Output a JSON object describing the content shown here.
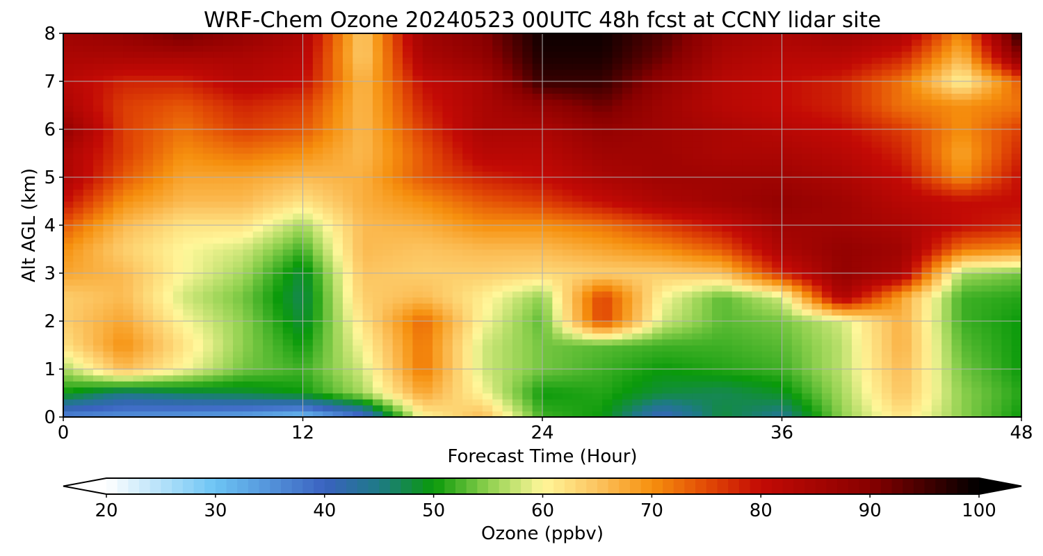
{
  "chart_data": {
    "type": "heatmap",
    "title": "WRF-Chem Ozone  20240523 00UTC 48h fcst at CCNY lidar site",
    "xlabel": "Forecast Time (Hour)",
    "ylabel": "Alt AGL (km)",
    "xlim": [
      0,
      48
    ],
    "ylim": [
      0,
      8
    ],
    "x_ticks": [
      "0",
      "12",
      "24",
      "36",
      "48"
    ],
    "y_ticks": [
      "0",
      "1",
      "2",
      "3",
      "4",
      "5",
      "6",
      "7",
      "8"
    ],
    "grid": true,
    "x": [
      0,
      3,
      6,
      9,
      12,
      15,
      18,
      21,
      24,
      27,
      30,
      33,
      36,
      39,
      42,
      45,
      48
    ],
    "y": [
      0,
      0.5,
      1,
      1.5,
      2,
      2.5,
      3,
      3.5,
      4,
      4.5,
      5,
      5.5,
      6,
      6.5,
      7,
      7.5,
      8
    ],
    "values": [
      [
        36,
        35,
        34,
        33,
        30,
        38,
        60,
        66,
        52,
        50,
        40,
        48,
        44,
        55,
        62,
        55,
        50
      ],
      [
        50,
        45,
        47,
        48,
        50,
        56,
        68,
        60,
        50,
        51,
        48,
        47,
        49,
        56,
        65,
        55,
        51
      ],
      [
        56,
        66,
        60,
        54,
        52,
        58,
        72,
        58,
        54,
        52,
        50,
        51,
        52,
        57,
        66,
        54,
        50
      ],
      [
        62,
        70,
        62,
        55,
        50,
        60,
        72,
        58,
        54,
        53,
        52,
        52,
        53,
        57,
        67,
        53,
        50
      ],
      [
        64,
        68,
        60,
        55,
        48,
        62,
        73,
        60,
        53,
        76,
        58,
        53,
        54,
        58,
        67,
        52,
        50
      ],
      [
        64,
        66,
        58,
        54,
        47,
        64,
        66,
        61,
        55,
        76,
        60,
        53,
        58,
        84,
        68,
        52,
        51
      ],
      [
        68,
        66,
        60,
        56,
        48,
        65,
        64,
        64,
        63,
        64,
        64,
        65,
        78,
        88,
        84,
        56,
        54
      ],
      [
        70,
        64,
        60,
        58,
        52,
        66,
        65,
        66,
        66,
        68,
        70,
        74,
        84,
        88,
        86,
        72,
        70
      ],
      [
        74,
        66,
        62,
        62,
        56,
        66,
        67,
        70,
        70,
        72,
        76,
        80,
        86,
        86,
        84,
        80,
        78
      ],
      [
        80,
        70,
        66,
        66,
        62,
        67,
        70,
        74,
        76,
        80,
        84,
        86,
        88,
        86,
        82,
        80,
        80
      ],
      [
        84,
        74,
        68,
        68,
        66,
        67,
        74,
        78,
        80,
        84,
        86,
        86,
        86,
        84,
        80,
        70,
        80
      ],
      [
        84,
        76,
        70,
        72,
        70,
        66,
        74,
        82,
        82,
        86,
        86,
        84,
        84,
        82,
        78,
        68,
        78
      ],
      [
        88,
        76,
        72,
        76,
        74,
        66,
        76,
        84,
        84,
        88,
        86,
        84,
        82,
        80,
        76,
        70,
        76
      ],
      [
        84,
        76,
        74,
        78,
        76,
        66,
        78,
        84,
        88,
        92,
        86,
        82,
        80,
        78,
        72,
        70,
        72
      ],
      [
        82,
        78,
        78,
        82,
        80,
        66,
        80,
        84,
        96,
        96,
        88,
        82,
        80,
        78,
        72,
        60,
        74
      ],
      [
        84,
        84,
        84,
        84,
        82,
        64,
        84,
        88,
        98,
        98,
        92,
        84,
        82,
        82,
        78,
        66,
        90
      ],
      [
        86,
        88,
        92,
        88,
        84,
        64,
        86,
        90,
        99,
        99,
        94,
        86,
        84,
        86,
        84,
        70,
        98
      ]
    ],
    "colorbar": {
      "label": "Ozone  (ppbv)",
      "min": 20,
      "max": 100,
      "extend": "both",
      "ticks": [
        "20",
        "30",
        "40",
        "50",
        "60",
        "70",
        "80",
        "90",
        "100"
      ],
      "stops": [
        {
          "v": 20,
          "c": "#ffffff"
        },
        {
          "v": 30,
          "c": "#6cc4f4"
        },
        {
          "v": 40,
          "c": "#3a62c0"
        },
        {
          "v": 45,
          "c": "#1e7a86"
        },
        {
          "v": 50,
          "c": "#0a9a0a"
        },
        {
          "v": 55,
          "c": "#8ed04e"
        },
        {
          "v": 60,
          "c": "#fff79a"
        },
        {
          "v": 65,
          "c": "#fcc460"
        },
        {
          "v": 70,
          "c": "#f6900e"
        },
        {
          "v": 75,
          "c": "#e24a05"
        },
        {
          "v": 80,
          "c": "#c30a05"
        },
        {
          "v": 90,
          "c": "#880000"
        },
        {
          "v": 100,
          "c": "#000000"
        }
      ]
    }
  }
}
